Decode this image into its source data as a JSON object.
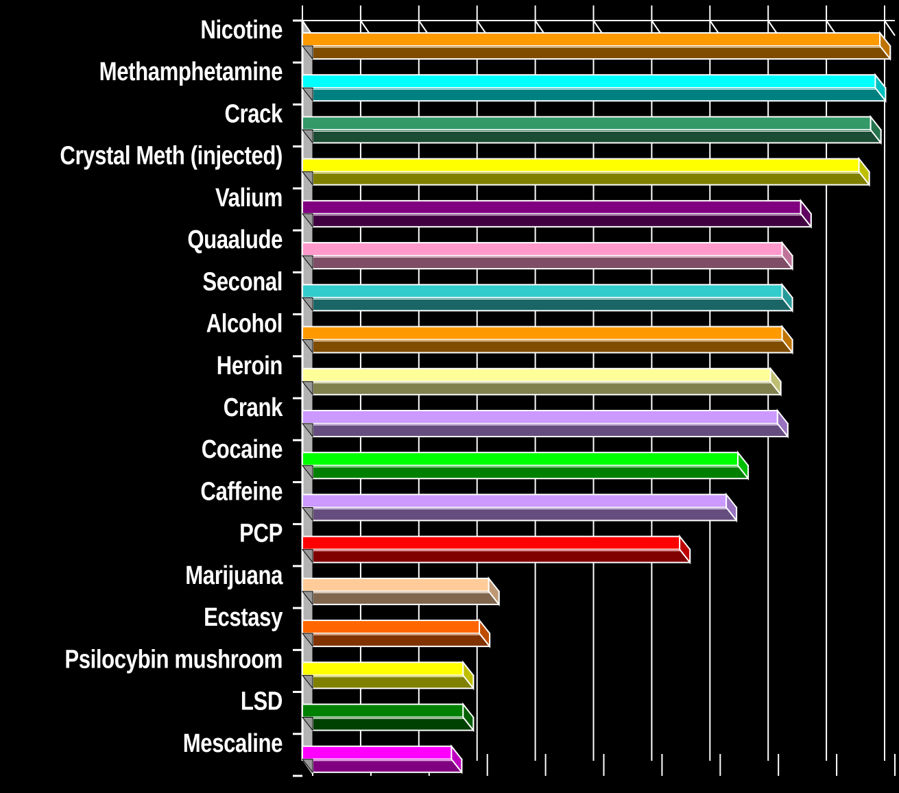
{
  "chart_data": {
    "type": "bar",
    "orientation": "horizontal",
    "style": "3d",
    "title": "",
    "xlabel": "",
    "ylabel": "",
    "grid": true,
    "legend": "none",
    "categories": [
      "Nicotine",
      "Methamphetamine",
      "Crack",
      "Crystal Meth (injected)",
      "Valium",
      "Quaalude",
      "Seconal",
      "Alcohol",
      "Heroin",
      "Crank",
      "Cocaine",
      "Caffeine",
      "PCP",
      "Marijuana",
      "Ecstasy",
      "Psilocybin mushroom",
      "LSD",
      "Mescaline"
    ],
    "values": [
      2.48,
      2.46,
      2.44,
      2.39,
      2.14,
      2.06,
      2.06,
      2.06,
      2.01,
      2.04,
      1.87,
      1.82,
      1.62,
      0.8,
      0.76,
      0.69,
      0.69,
      0.64
    ],
    "colors": [
      "#ff9900",
      "#00ffff",
      "#339966",
      "#ffff00",
      "#800080",
      "#ff99cc",
      "#33cccc",
      "#ff9900",
      "#ffff99",
      "#cc99ff",
      "#00ff00",
      "#cc99ff",
      "#ff0000",
      "#ffcc99",
      "#ff6600",
      "#ffff00",
      "#008000",
      "#ff00ff"
    ],
    "xlim": [
      0,
      2.5
    ],
    "gridline_count": 10,
    "background": "#000000",
    "label_color": "#ffffff",
    "grid_color": "#ffffff"
  }
}
